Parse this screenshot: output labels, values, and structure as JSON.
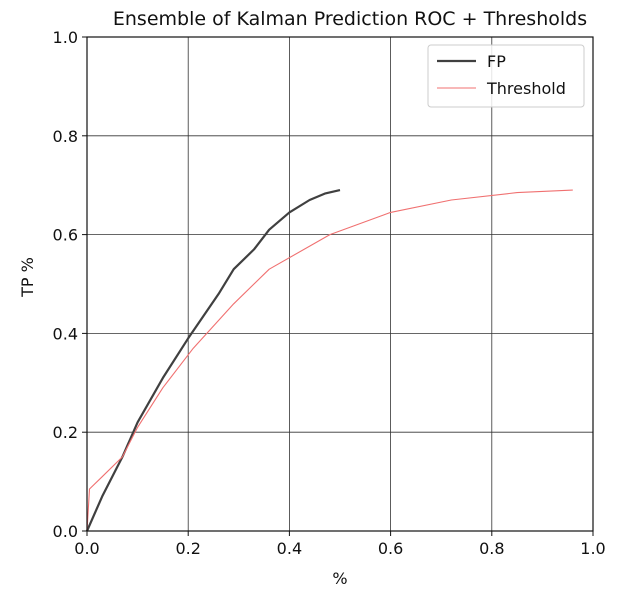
{
  "chart_data": {
    "type": "line",
    "title": "Ensemble of Kalman Prediction ROC + Thresholds",
    "xlabel": "%",
    "ylabel": "TP %",
    "xlim": [
      0.0,
      1.0
    ],
    "ylim": [
      0.0,
      1.0
    ],
    "x_ticks": [
      "0.0",
      "0.2",
      "0.4",
      "0.6",
      "0.8",
      "1.0"
    ],
    "y_ticks": [
      "0.0",
      "0.2",
      "0.4",
      "0.6",
      "0.8",
      "1.0"
    ],
    "grid": true,
    "legend": "top-right",
    "series": [
      {
        "name": "FP",
        "color": "#404040",
        "points": [
          [
            0.0,
            0.0
          ],
          [
            0.03,
            0.07
          ],
          [
            0.07,
            0.15
          ],
          [
            0.1,
            0.22
          ],
          [
            0.15,
            0.31
          ],
          [
            0.2,
            0.39
          ],
          [
            0.26,
            0.48
          ],
          [
            0.29,
            0.53
          ],
          [
            0.33,
            0.57
          ],
          [
            0.36,
            0.61
          ],
          [
            0.4,
            0.645
          ],
          [
            0.44,
            0.67
          ],
          [
            0.47,
            0.683
          ],
          [
            0.5,
            0.69
          ]
        ]
      },
      {
        "name": "Threshold",
        "color": "#f07070",
        "points": [
          [
            0.0,
            0.0
          ],
          [
            0.005,
            0.085
          ],
          [
            0.03,
            0.11
          ],
          [
            0.07,
            0.15
          ],
          [
            0.1,
            0.21
          ],
          [
            0.15,
            0.29
          ],
          [
            0.21,
            0.37
          ],
          [
            0.29,
            0.46
          ],
          [
            0.36,
            0.53
          ],
          [
            0.48,
            0.6
          ],
          [
            0.6,
            0.645
          ],
          [
            0.72,
            0.67
          ],
          [
            0.85,
            0.685
          ],
          [
            0.96,
            0.69
          ]
        ]
      }
    ]
  }
}
